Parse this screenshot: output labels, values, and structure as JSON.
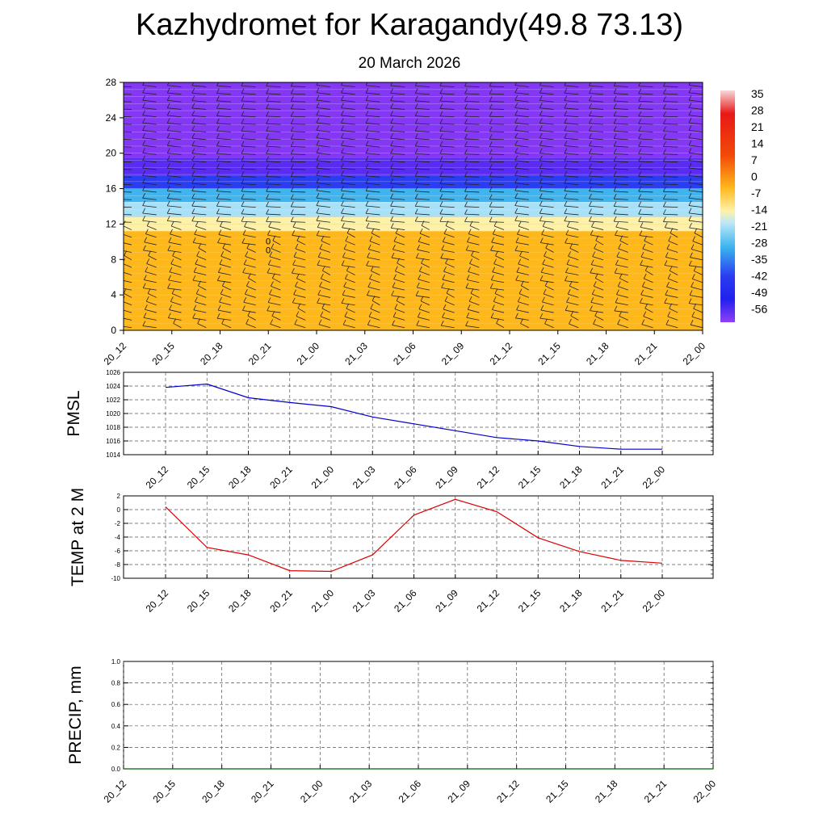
{
  "title": "Kazhydromet for Karagandy(49.8 73.13)",
  "subtitle": "20 March 2026",
  "time_labels": [
    "20_12",
    "20_15",
    "20_18",
    "20_21",
    "21_00",
    "21_03",
    "21_06",
    "21_09",
    "21_12",
    "21_15",
    "21_18",
    "21_21",
    "22_00"
  ],
  "colors": {
    "pmsl_line": "#0000cc",
    "temp_line": "#dd0000",
    "precip_line": "#006400",
    "grid": "#555555"
  },
  "chart_data": [
    {
      "type": "heatmap",
      "name": "vertical-cross-section",
      "x": [
        "20_12",
        "20_15",
        "20_18",
        "20_21",
        "21_00",
        "21_03",
        "21_06",
        "21_09",
        "21_12",
        "21_15",
        "21_18",
        "21_21",
        "22_00"
      ],
      "ylim": [
        0,
        28
      ],
      "yticks": [
        0,
        4,
        8,
        12,
        16,
        20,
        24,
        28
      ],
      "colorbar_labels": [
        "35",
        "28",
        "21",
        "14",
        "7",
        "0",
        "-7",
        "-14",
        "-21",
        "-28",
        "-35",
        "-42",
        "-49",
        "-56"
      ],
      "layers": [
        {
          "from": 0,
          "to": 11.2,
          "color": "#ffb81c"
        },
        {
          "from": 11.2,
          "to": 12.8,
          "color": "#fff2a8"
        },
        {
          "from": 12.8,
          "to": 14.5,
          "color": "#a8e0f8"
        },
        {
          "from": 14.5,
          "to": 16.0,
          "color": "#40b4ee"
        },
        {
          "from": 16.0,
          "to": 17.5,
          "color": "#2b3df0"
        },
        {
          "from": 17.5,
          "to": 19.5,
          "color": "#5a2cf2"
        },
        {
          "from": 19.5,
          "to": 28,
          "color": "#8438f4"
        }
      ],
      "annotation": "00"
    },
    {
      "type": "line",
      "name": "pmsl",
      "ylabel": "PMSL",
      "categories": [
        "20_12",
        "20_15",
        "20_18",
        "20_21",
        "21_00",
        "21_03",
        "21_06",
        "21_09",
        "21_12",
        "21_15",
        "21_18",
        "21_21",
        "22_00"
      ],
      "values": [
        1023.8,
        1024.3,
        1022.3,
        1021.6,
        1021.0,
        1019.5,
        1018.5,
        1017.5,
        1016.5,
        1016.0,
        1015.2,
        1014.8,
        1014.8
      ],
      "ylim": [
        1014,
        1026
      ],
      "yticks": [
        "1014",
        "1016",
        "1018",
        "1020",
        "1022",
        "1024",
        "1026"
      ]
    },
    {
      "type": "line",
      "name": "temp-2m",
      "ylabel": "TEMP at 2 M",
      "categories": [
        "20_12",
        "20_15",
        "20_18",
        "20_21",
        "21_00",
        "21_03",
        "21_06",
        "21_09",
        "21_12",
        "21_15",
        "21_18",
        "21_21",
        "22_00"
      ],
      "values": [
        0.4,
        -5.5,
        -6.6,
        -8.9,
        -9.0,
        -6.6,
        -0.8,
        1.5,
        -0.3,
        -4.1,
        -6.1,
        -7.4,
        -7.8
      ],
      "ylim": [
        -10,
        2
      ],
      "yticks": [
        "-10",
        "-8",
        "-6",
        "-4",
        "-2",
        "0",
        "2"
      ]
    },
    {
      "type": "line",
      "name": "precip",
      "ylabel": "PRECIP, mm",
      "categories": [
        "20_12",
        "20_15",
        "20_18",
        "20_21",
        "21_00",
        "21_03",
        "21_06",
        "21_09",
        "21_12",
        "21_15",
        "21_18",
        "21_21",
        "22_00"
      ],
      "values": [
        0,
        0,
        0,
        0,
        0,
        0,
        0,
        0,
        0,
        0,
        0,
        0,
        0
      ],
      "ylim": [
        0,
        1
      ],
      "yticks": [
        "0.0",
        "0.2",
        "0.4",
        "0.6",
        "0.8",
        "1.0"
      ]
    }
  ]
}
